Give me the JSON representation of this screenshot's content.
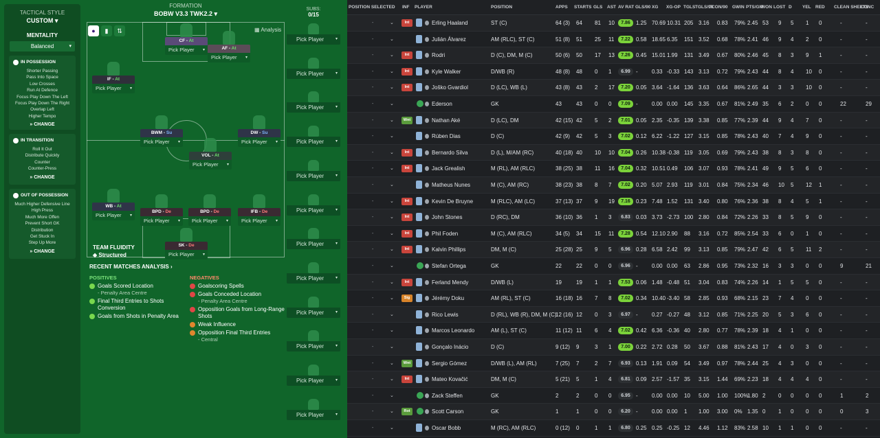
{
  "sidebar": {
    "tactical_style_label": "TACTICAL STYLE",
    "tactical_style_value": "CUSTOM",
    "mentality_label": "MENTALITY",
    "mentality_value": "Balanced",
    "in_possession": {
      "title": "IN POSSESSION",
      "items": [
        "Shorter Passing",
        "Pass Into Space",
        "Low Crosses",
        "Run At Defence",
        "Focus Play Down The Left",
        "Focus Play Down The Right",
        "Overlap Left",
        "Higher Tempo"
      ],
      "change": "CHANGE"
    },
    "in_transition": {
      "title": "IN TRANSITION",
      "items": [
        "Roll It Out",
        "Distribute Quickly",
        "Counter",
        "Counter-Press"
      ],
      "change": "CHANGE"
    },
    "out_of_possession": {
      "title": "OUT OF POSSESSION",
      "items": [
        "Much Higher Defensive Line",
        "High Press",
        "Much More Offen",
        "Prevent Short GK",
        "Distribution",
        "Get Stuck In",
        "Step Up More"
      ],
      "change": "CHANGE"
    }
  },
  "formation": {
    "label": "FORMATION",
    "name": "BOBW V3.3 TWK2.2",
    "analysis": "Analysis"
  },
  "pick_label": "Pick Player",
  "positions": [
    {
      "role": "CF",
      "duty": "At",
      "duty_class": "at"
    },
    {
      "role": "AF",
      "duty": "At",
      "duty_class": "at"
    },
    {
      "role": "IF",
      "duty": "At",
      "duty_class": "at"
    },
    {
      "role": "BWM",
      "duty": "Su",
      "duty_class": "su"
    },
    {
      "role": "DW",
      "duty": "Su",
      "duty_class": "su"
    },
    {
      "role": "VOL",
      "duty": "At",
      "duty_class": "at"
    },
    {
      "role": "WB",
      "duty": "At",
      "duty_class": "at"
    },
    {
      "role": "BPD",
      "duty": "De",
      "duty_class": "de"
    },
    {
      "role": "BPD",
      "duty": "De",
      "duty_class": "de"
    },
    {
      "role": "IFB",
      "duty": "De",
      "duty_class": "de"
    },
    {
      "role": "SK",
      "duty": "De",
      "duty_class": "de"
    }
  ],
  "team_fluidity": {
    "label": "TEAM FLUIDITY",
    "value": "Structured"
  },
  "subs": {
    "label": "SUBS:",
    "count": "0/15"
  },
  "recent": {
    "title": "RECENT MATCHES ANALYSIS",
    "positives_label": "POSITIVES",
    "negatives_label": "NEGATIVES",
    "positives": [
      {
        "text": "Goals Scored Location",
        "sub": "- Penalty Area Centre"
      },
      {
        "text": "Final Third Entries to Shots Conversion",
        "sub": ""
      },
      {
        "text": "Goals from Shots in Penalty Area",
        "sub": ""
      }
    ],
    "negatives": [
      {
        "text": "Goalscoring Spells",
        "sub": "",
        "tone": "r"
      },
      {
        "text": "Goals Conceded Location",
        "sub": "- Penalty Area Centre",
        "tone": "r"
      },
      {
        "text": "Opposition Goals from Long-Range Shots",
        "sub": "",
        "tone": "r"
      },
      {
        "text": "Weak Influence",
        "sub": "",
        "tone": "o"
      },
      {
        "text": "Opposition Final Third Entries",
        "sub": "- Central",
        "tone": "o"
      }
    ]
  },
  "table": {
    "headers": [
      "POSITION SELECTED",
      "INF",
      "PLAYER",
      "POSITION",
      "APPS",
      "STARTS",
      "GLS",
      "AST",
      "AV RAT",
      "GLS/90",
      "XG",
      "XG-OP",
      "TGLS",
      "TGLS/90",
      "TCON/90",
      "GWIN",
      "PTS/GM",
      "WON",
      "LOST",
      "D",
      "YEL",
      "RED",
      "CLEAN SHEETS",
      "CONC"
    ],
    "rows": [
      {
        "inf": "Int",
        "kit": "out",
        "player": "Erling Haaland",
        "position": "ST (C)",
        "apps": "64 (3)",
        "starts": "64",
        "gls": "81",
        "ast": "10",
        "avr": "7.86",
        "hi": true,
        "gls90": "1.25",
        "xg": "70.69",
        "xgop": "10.31",
        "tgls": "205",
        "tgls90": "3.16",
        "tcon90": "0.83",
        "gwin": "79%",
        "ptsgm": "2.45",
        "won": "53",
        "lost": "9",
        "d": "5",
        "yel": "1",
        "red": "0",
        "cs": "-",
        "conc": "-"
      },
      {
        "inf": "",
        "kit": "out",
        "player": "Julián Álvarez",
        "position": "AM (RLC), ST (C)",
        "apps": "51 (8)",
        "starts": "51",
        "gls": "25",
        "ast": "11",
        "avr": "7.22",
        "hi": true,
        "gls90": "0.58",
        "xg": "18.65",
        "xgop": "6.35",
        "tgls": "151",
        "tgls90": "3.52",
        "tcon90": "0.68",
        "gwin": "78%",
        "ptsgm": "2.41",
        "won": "46",
        "lost": "9",
        "d": "4",
        "yel": "2",
        "red": "0",
        "cs": "-",
        "conc": "-"
      },
      {
        "inf": "Int",
        "kit": "out",
        "player": "Rodri",
        "position": "D (C), DM, M (C)",
        "apps": "50 (6)",
        "starts": "50",
        "gls": "17",
        "ast": "13",
        "avr": "7.26",
        "hi": true,
        "gls90": "0.45",
        "xg": "15.01",
        "xgop": "1.99",
        "tgls": "131",
        "tgls90": "3.49",
        "tcon90": "0.67",
        "gwin": "80%",
        "ptsgm": "2.46",
        "won": "45",
        "lost": "8",
        "d": "3",
        "yel": "9",
        "red": "1",
        "cs": "-",
        "conc": "-"
      },
      {
        "inf": "Int",
        "kit": "out",
        "player": "Kyle Walker",
        "position": "D/WB (R)",
        "apps": "48 (8)",
        "starts": "48",
        "gls": "0",
        "ast": "1",
        "avr": "6.99",
        "hi": false,
        "gls90": "-",
        "xg": "0.33",
        "xgop": "-0.33",
        "tgls": "143",
        "tgls90": "3.13",
        "tcon90": "0.72",
        "gwin": "79%",
        "ptsgm": "2.43",
        "won": "44",
        "lost": "8",
        "d": "4",
        "yel": "10",
        "red": "0",
        "cs": "-",
        "conc": "-"
      },
      {
        "inf": "Int",
        "kit": "out",
        "player": "Joško Gvardiol",
        "position": "D (LC), WB (L)",
        "apps": "43 (8)",
        "starts": "43",
        "gls": "2",
        "ast": "17",
        "avr": "7.20",
        "hi": true,
        "gls90": "0.05",
        "xg": "3.64",
        "xgop": "-1.64",
        "tgls": "136",
        "tgls90": "3.63",
        "tcon90": "0.64",
        "gwin": "86%",
        "ptsgm": "2.65",
        "won": "44",
        "lost": "3",
        "d": "3",
        "yel": "10",
        "red": "0",
        "cs": "-",
        "conc": "-"
      },
      {
        "inf": "",
        "kit": "gk",
        "player": "Ederson",
        "position": "GK",
        "apps": "43",
        "starts": "43",
        "gls": "0",
        "ast": "0",
        "avr": "7.09",
        "hi": true,
        "gls90": "-",
        "xg": "0.00",
        "xgop": "0.00",
        "tgls": "145",
        "tgls90": "3.35",
        "tcon90": "0.67",
        "gwin": "81%",
        "ptsgm": "2.49",
        "won": "35",
        "lost": "6",
        "d": "2",
        "yel": "0",
        "red": "0",
        "cs": "22",
        "conc": "29"
      },
      {
        "inf": "Wnt",
        "kit": "out",
        "player": "Nathan Aké",
        "position": "D (LC), DM",
        "apps": "42 (15)",
        "starts": "42",
        "gls": "5",
        "ast": "2",
        "avr": "7.01",
        "hi": true,
        "gls90": "0.05",
        "xg": "2.35",
        "xgop": "-0.35",
        "tgls": "139",
        "tgls90": "3.38",
        "tcon90": "0.85",
        "gwin": "77%",
        "ptsgm": "2.39",
        "won": "44",
        "lost": "9",
        "d": "4",
        "yel": "7",
        "red": "0",
        "cs": "-",
        "conc": "-"
      },
      {
        "inf": "",
        "kit": "out",
        "player": "Rúben Dias",
        "position": "D (C)",
        "apps": "42 (9)",
        "starts": "42",
        "gls": "5",
        "ast": "3",
        "avr": "7.02",
        "hi": true,
        "gls90": "0.12",
        "xg": "6.22",
        "xgop": "-1.22",
        "tgls": "127",
        "tgls90": "3.15",
        "tcon90": "0.85",
        "gwin": "78%",
        "ptsgm": "2.43",
        "won": "40",
        "lost": "7",
        "d": "4",
        "yel": "9",
        "red": "0",
        "cs": "-",
        "conc": "-"
      },
      {
        "inf": "Int",
        "kit": "out",
        "player": "Bernardo Silva",
        "position": "D (L), M/AM (RC)",
        "apps": "40 (18)",
        "starts": "40",
        "gls": "10",
        "ast": "10",
        "avr": "7.04",
        "hi": true,
        "gls90": "0.26",
        "xg": "10.38",
        "xgop": "-0.38",
        "tgls": "119",
        "tgls90": "3.05",
        "tcon90": "0.69",
        "gwin": "79%",
        "ptsgm": "2.43",
        "won": "38",
        "lost": "8",
        "d": "3",
        "yel": "8",
        "red": "0",
        "cs": "-",
        "conc": "-"
      },
      {
        "inf": "Int",
        "kit": "out",
        "player": "Jack Grealish",
        "position": "M (RL), AM (RLC)",
        "apps": "38 (25)",
        "starts": "38",
        "gls": "11",
        "ast": "16",
        "avr": "7.04",
        "hi": true,
        "gls90": "0.32",
        "xg": "10.51",
        "xgop": "0.49",
        "tgls": "106",
        "tgls90": "3.07",
        "tcon90": "0.93",
        "gwin": "78%",
        "ptsgm": "2.41",
        "won": "49",
        "lost": "9",
        "d": "5",
        "yel": "6",
        "red": "0",
        "cs": "-",
        "conc": "-"
      },
      {
        "inf": "",
        "kit": "out",
        "player": "Matheus Nunes",
        "position": "M (C), AM (RC)",
        "apps": "38 (23)",
        "starts": "38",
        "gls": "8",
        "ast": "7",
        "avr": "7.02",
        "hi": true,
        "gls90": "0.20",
        "xg": "5.07",
        "xgop": "2.93",
        "tgls": "119",
        "tgls90": "3.01",
        "tcon90": "0.84",
        "gwin": "75%",
        "ptsgm": "2.34",
        "won": "46",
        "lost": "10",
        "d": "5",
        "yel": "12",
        "red": "1",
        "cs": "-",
        "conc": "-"
      },
      {
        "inf": "Int",
        "kit": "out",
        "player": "Kevin De Bruyne",
        "position": "M (RLC), AM (LC)",
        "apps": "37 (13)",
        "starts": "37",
        "gls": "9",
        "ast": "19",
        "avr": "7.16",
        "hi": true,
        "gls90": "0.23",
        "xg": "7.48",
        "xgop": "1.52",
        "tgls": "131",
        "tgls90": "3.40",
        "tcon90": "0.80",
        "gwin": "76%",
        "ptsgm": "2.36",
        "won": "38",
        "lost": "8",
        "d": "4",
        "yel": "5",
        "red": "1",
        "cs": "-",
        "conc": "-"
      },
      {
        "inf": "Int",
        "kit": "out",
        "player": "John Stones",
        "position": "D (RC), DM",
        "apps": "36 (10)",
        "starts": "36",
        "gls": "1",
        "ast": "3",
        "avr": "6.83",
        "hi": false,
        "gls90": "0.03",
        "xg": "3.73",
        "xgop": "-2.73",
        "tgls": "100",
        "tgls90": "2.80",
        "tcon90": "0.84",
        "gwin": "72%",
        "ptsgm": "2.26",
        "won": "33",
        "lost": "8",
        "d": "5",
        "yel": "9",
        "red": "0",
        "cs": "-",
        "conc": "-"
      },
      {
        "inf": "Int",
        "kit": "out",
        "player": "Phil Foden",
        "position": "M (C), AM (RLC)",
        "apps": "34 (5)",
        "starts": "34",
        "gls": "15",
        "ast": "11",
        "avr": "7.28",
        "hi": true,
        "gls90": "0.54",
        "xg": "12.10",
        "xgop": "2.90",
        "tgls": "88",
        "tgls90": "3.16",
        "tcon90": "0.72",
        "gwin": "85%",
        "ptsgm": "2.54",
        "won": "33",
        "lost": "6",
        "d": "0",
        "yel": "1",
        "red": "0",
        "cs": "-",
        "conc": "-"
      },
      {
        "inf": "Int",
        "kit": "out",
        "player": "Kalvin Phillips",
        "position": "DM, M (C)",
        "apps": "25 (28)",
        "starts": "25",
        "gls": "9",
        "ast": "5",
        "avr": "6.96",
        "hi": false,
        "gls90": "0.28",
        "xg": "6.58",
        "xgop": "2.42",
        "tgls": "99",
        "tgls90": "3.13",
        "tcon90": "0.85",
        "gwin": "79%",
        "ptsgm": "2.47",
        "won": "42",
        "lost": "6",
        "d": "5",
        "yel": "11",
        "red": "2",
        "cs": "-",
        "conc": "-"
      },
      {
        "inf": "",
        "kit": "gk",
        "player": "Stefan Ortega",
        "position": "GK",
        "apps": "22",
        "starts": "22",
        "gls": "0",
        "ast": "0",
        "avr": "6.96",
        "hi": false,
        "gls90": "-",
        "xg": "0.00",
        "xgop": "0.00",
        "tgls": "63",
        "tgls90": "2.86",
        "tcon90": "0.95",
        "gwin": "73%",
        "ptsgm": "2.32",
        "won": "16",
        "lost": "3",
        "d": "3",
        "yel": "0",
        "red": "0",
        "cs": "9",
        "conc": "21"
      },
      {
        "inf": "Int",
        "kit": "out",
        "player": "Ferland Mendy",
        "position": "D/WB (L)",
        "apps": "19",
        "starts": "19",
        "gls": "1",
        "ast": "1",
        "avr": "7.53",
        "hi": true,
        "gls90": "0.06",
        "xg": "1.48",
        "xgop": "-0.48",
        "tgls": "51",
        "tgls90": "3.04",
        "tcon90": "0.83",
        "gwin": "74%",
        "ptsgm": "2.26",
        "won": "14",
        "lost": "1",
        "d": "5",
        "yel": "5",
        "red": "0",
        "cs": "-",
        "conc": "-"
      },
      {
        "inf": "Sig",
        "kit": "out",
        "player": "Jérémy Doku",
        "position": "AM (RL), ST (C)",
        "apps": "16 (18)",
        "starts": "16",
        "gls": "7",
        "ast": "8",
        "avr": "7.02",
        "hi": true,
        "gls90": "0.34",
        "xg": "10.40",
        "xgop": "-3.40",
        "tgls": "58",
        "tgls90": "2.85",
        "tcon90": "0.93",
        "gwin": "68%",
        "ptsgm": "2.15",
        "won": "23",
        "lost": "7",
        "d": "4",
        "yel": "0",
        "red": "0",
        "cs": "-",
        "conc": "-"
      },
      {
        "inf": "",
        "kit": "out",
        "player": "Rico Lewis",
        "position": "D (RL), WB (R), DM, M (C)",
        "apps": "12 (16)",
        "starts": "12",
        "gls": "0",
        "ast": "3",
        "avr": "6.97",
        "hi": false,
        "gls90": "-",
        "xg": "0.27",
        "xgop": "-0.27",
        "tgls": "48",
        "tgls90": "3.12",
        "tcon90": "0.85",
        "gwin": "71%",
        "ptsgm": "2.25",
        "won": "20",
        "lost": "5",
        "d": "3",
        "yel": "6",
        "red": "0",
        "cs": "-",
        "conc": "-"
      },
      {
        "inf": "",
        "kit": "out",
        "player": "Marcos Leonardo",
        "position": "AM (L), ST (C)",
        "apps": "11 (12)",
        "starts": "11",
        "gls": "6",
        "ast": "4",
        "avr": "7.02",
        "hi": true,
        "gls90": "0.42",
        "xg": "6.36",
        "xgop": "-0.36",
        "tgls": "40",
        "tgls90": "2.80",
        "tcon90": "0.77",
        "gwin": "78%",
        "ptsgm": "2.39",
        "won": "18",
        "lost": "4",
        "d": "1",
        "yel": "0",
        "red": "0",
        "cs": "-",
        "conc": "-"
      },
      {
        "inf": "",
        "kit": "out",
        "player": "Gonçalo Inácio",
        "position": "D (C)",
        "apps": "9 (12)",
        "starts": "9",
        "gls": "3",
        "ast": "1",
        "avr": "7.00",
        "hi": true,
        "gls90": "0.22",
        "xg": "2.72",
        "xgop": "0.28",
        "tgls": "50",
        "tgls90": "3.67",
        "tcon90": "0.88",
        "gwin": "81%",
        "ptsgm": "2.43",
        "won": "17",
        "lost": "4",
        "d": "0",
        "yel": "3",
        "red": "0",
        "cs": "-",
        "conc": "-"
      },
      {
        "inf": "Wnt",
        "kit": "out",
        "player": "Sergio Gómez",
        "position": "D/WB (L), AM (RL)",
        "apps": "7 (25)",
        "starts": "7",
        "gls": "2",
        "ast": "7",
        "avr": "6.93",
        "hi": false,
        "gls90": "0.13",
        "xg": "1.91",
        "xgop": "0.09",
        "tgls": "54",
        "tgls90": "3.49",
        "tcon90": "0.97",
        "gwin": "78%",
        "ptsgm": "2.44",
        "won": "25",
        "lost": "4",
        "d": "3",
        "yel": "0",
        "red": "0",
        "cs": "-",
        "conc": "-"
      },
      {
        "inf": "Int",
        "kit": "out",
        "player": "Mateo Kovačić",
        "position": "DM, M (C)",
        "apps": "5 (21)",
        "starts": "5",
        "gls": "1",
        "ast": "4",
        "avr": "6.81",
        "hi": false,
        "gls90": "0.09",
        "xg": "2.57",
        "xgop": "-1.57",
        "tgls": "35",
        "tgls90": "3.15",
        "tcon90": "1.44",
        "gwin": "69%",
        "ptsgm": "2.23",
        "won": "18",
        "lost": "4",
        "d": "4",
        "yel": "4",
        "red": "0",
        "cs": "-",
        "conc": "-"
      },
      {
        "inf": "",
        "kit": "gk",
        "player": "Zack Steffen",
        "position": "GK",
        "apps": "2",
        "starts": "2",
        "gls": "0",
        "ast": "0",
        "avr": "6.95",
        "hi": false,
        "gls90": "-",
        "xg": "0.00",
        "xgop": "0.00",
        "tgls": "10",
        "tgls90": "5.00",
        "tcon90": "1.00",
        "gwin": "100%",
        "ptsgm": "1.80",
        "won": "2",
        "lost": "0",
        "d": "0",
        "yel": "0",
        "red": "0",
        "cs": "1",
        "conc": "2"
      },
      {
        "inf": "Rot",
        "kit": "gk",
        "player": "Scott Carson",
        "position": "GK",
        "apps": "1",
        "starts": "1",
        "gls": "0",
        "ast": "0",
        "avr": "6.20",
        "hi": false,
        "gls90": "-",
        "xg": "0.00",
        "xgop": "0.00",
        "tgls": "1",
        "tgls90": "1.00",
        "tcon90": "3.00",
        "gwin": "0%",
        "ptsgm": "1.35",
        "won": "0",
        "lost": "1",
        "d": "0",
        "yel": "0",
        "red": "0",
        "cs": "0",
        "conc": "3"
      },
      {
        "inf": "",
        "kit": "out",
        "player": "Oscar Bobb",
        "position": "M (RC), AM (RLC)",
        "apps": "0 (12)",
        "starts": "0",
        "gls": "1",
        "ast": "1",
        "avr": "6.80",
        "hi": false,
        "gls90": "0.25",
        "xg": "0.25",
        "xgop": "-0.25",
        "tgls": "12",
        "tgls90": "4.46",
        "tcon90": "1.12",
        "gwin": "83%",
        "ptsgm": "2.58",
        "won": "10",
        "lost": "1",
        "d": "1",
        "yel": "0",
        "red": "0",
        "cs": "-",
        "conc": "-"
      }
    ]
  }
}
